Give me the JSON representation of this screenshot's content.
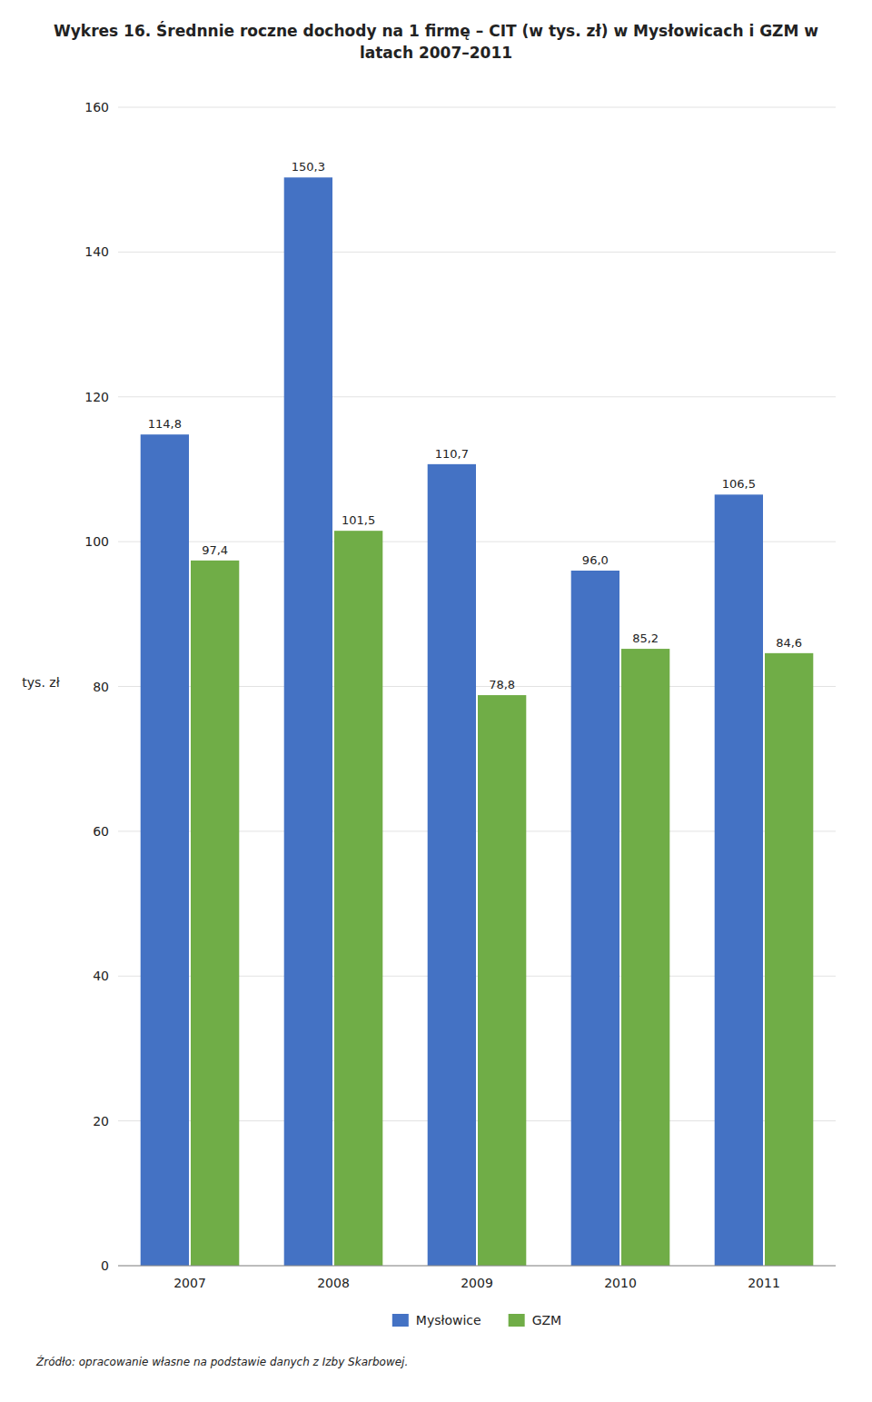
{
  "chart_data": {
    "type": "bar",
    "title": "Wykres 16. Średnnie roczne dochody na 1 firmę – CIT (w tys. zł) w Mysłowicach i GZM w latach 2007–2011",
    "y_label": "tys. zł",
    "categories": [
      "2007",
      "2008",
      "2009",
      "2010",
      "2011"
    ],
    "series": [
      {
        "name": "Mysłowice",
        "color": "#4472C4",
        "values": [
          114.8,
          150.3,
          110.7,
          96.0,
          106.5
        ],
        "value_labels": [
          "114,8",
          "150,3",
          "110,7",
          "96,0",
          "106,5"
        ]
      },
      {
        "name": "GZM",
        "color": "#70AD47",
        "values": [
          97.4,
          101.5,
          78.8,
          85.2,
          84.6
        ],
        "value_labels": [
          "97,4",
          "101,5",
          "78,8",
          "85,2",
          "84,6"
        ]
      }
    ],
    "ylim": [
      0,
      160
    ],
    "yticks": [
      0,
      20,
      40,
      60,
      80,
      100,
      120,
      140,
      160
    ],
    "grid": true,
    "legend": "bottom",
    "data_labels": true,
    "annotations": [
      "Źródło: opracowanie własne na podstawie danych z Izby Skarbowej."
    ]
  }
}
